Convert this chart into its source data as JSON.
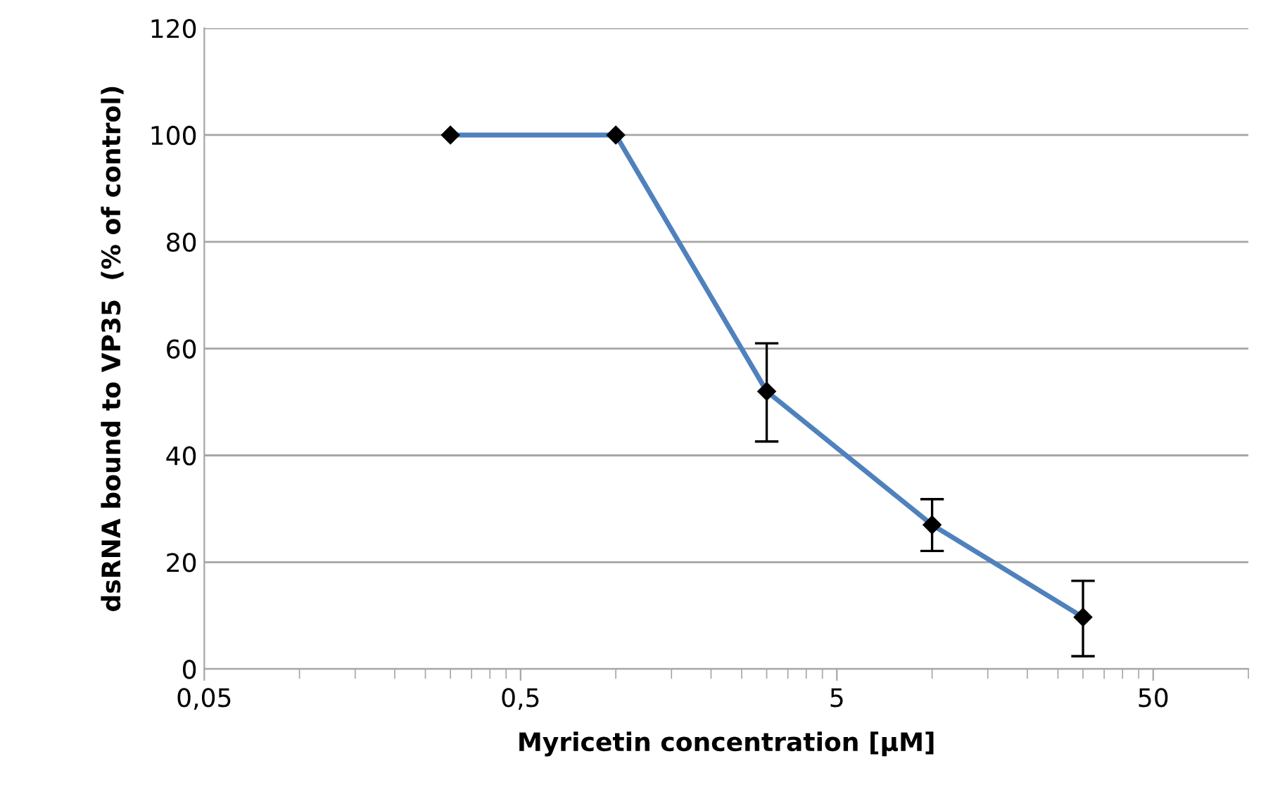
{
  "chart_data": {
    "type": "line",
    "xlabel": "Myricetin concentration [µM]",
    "ylabel": "dsRNA bound to VP35  (% of control)",
    "log": "x",
    "x": [
      0.3,
      1,
      3,
      10,
      30
    ],
    "series": [
      {
        "color": "#4f81bd",
        "values": [
          100,
          100,
          52,
          27,
          9.7
        ],
        "errors": [
          null,
          null,
          [
            42.6,
            61.0
          ],
          [
            22.1,
            31.8
          ],
          [
            2.4,
            16.5
          ]
        ]
      }
    ],
    "marker": "diamond",
    "line_style": "solid",
    "xlim": [
      0.05,
      100
    ],
    "xticks": [
      {
        "value": 0.05,
        "label": "0,05"
      },
      {
        "value": 0.5,
        "label": "0,5"
      },
      5,
      50,
      {
        "value": 0.1,
        "label": null
      },
      {
        "value": 0.15,
        "label": null
      },
      {
        "value": 0.2,
        "label": null
      },
      {
        "value": 0.25,
        "label": null
      },
      {
        "value": 0.3,
        "label": null
      },
      {
        "value": 0.35,
        "label": null
      },
      {
        "value": 0.4,
        "label": null
      },
      {
        "value": 0.45,
        "label": null
      },
      {
        "value": 1,
        "label": null
      },
      {
        "value": 1.5,
        "label": null
      },
      {
        "value": 2,
        "label": null
      },
      {
        "value": 2.5,
        "label": null
      },
      {
        "value": 3,
        "label": null
      },
      {
        "value": 3.5,
        "label": null
      },
      {
        "value": 4,
        "label": null
      },
      {
        "value": 4.5,
        "label": null
      },
      {
        "value": 10,
        "label": null
      },
      {
        "value": 15,
        "label": null
      },
      {
        "value": 20,
        "label": null
      },
      {
        "value": 25,
        "label": null
      },
      {
        "value": 30,
        "label": null
      },
      {
        "value": 35,
        "label": null
      },
      {
        "value": 40,
        "label": null
      },
      {
        "value": 45,
        "label": null
      },
      {
        "value": 100,
        "label": null
      }
    ],
    "ylim": [
      0,
      120
    ],
    "yticks": [
      0,
      20,
      40,
      60,
      80,
      100,
      120
    ],
    "grid": "y",
    "legend": false
  }
}
